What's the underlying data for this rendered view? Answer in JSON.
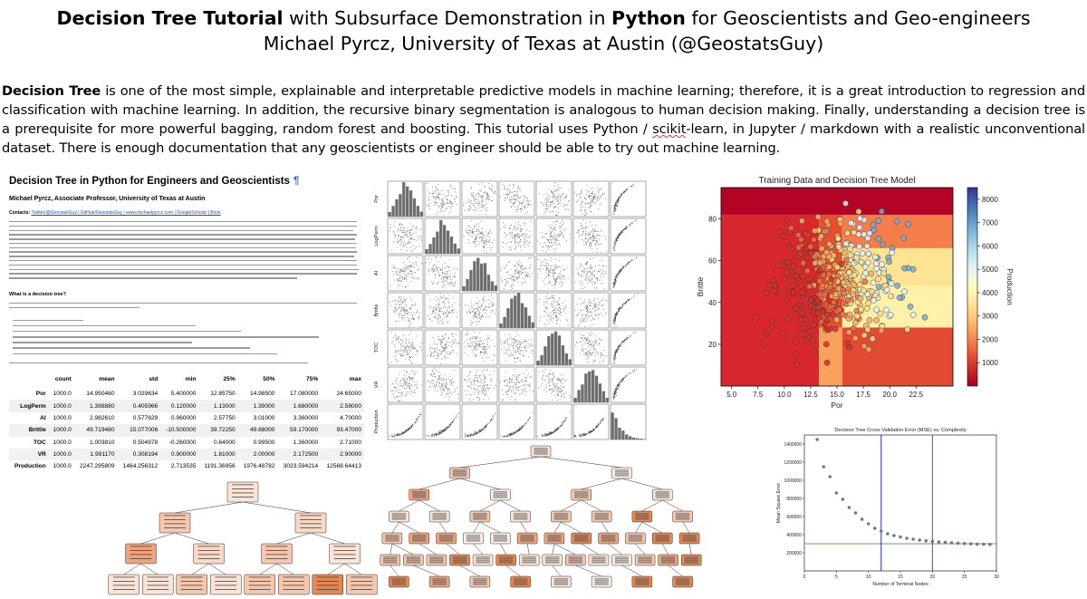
{
  "header": {
    "title_bold_1": "Decision Tree Tutorial",
    "title_mid": " with Subsurface Demonstration in ",
    "title_bold_2": "Python",
    "title_end": " for Geoscientists and Geo-engineers",
    "subtitle": "Michael Pyrcz, University of Texas at Austin (@GeostatsGuy)"
  },
  "intro": {
    "lead_bold": "Decision Tree",
    "text_1": " is one of the most simple, explainable and interpretable predictive models in machine learning; therefore, it is a great introduction to regression and classification with machine learning. In addition, the recursive binary segmentation is analogous to human decision making.  Finally, understanding a decision tree is a prerequisite for more powerful bagging, random forest and boosting.  This tutorial uses Python / ",
    "wavy_word": "scikit",
    "text_2": "-learn, in Jupyter / markdown with a realistic unconventional dataset.  There is enough documentation that any geoscientists or engineer should be able to try out machine learning."
  },
  "doc": {
    "title": "Decision Tree in Python for Engineers and Geoscientists",
    "pilcrow": "¶",
    "author": "Michael Pyrcz, Associate Professor, University of Texas at Austin",
    "contacts_label": "Contacts: ",
    "contacts_links": "Twitter/@GeostatsGuy | GitHub/GeostatsGuy | www.michaelpyrcz.com | GoogleScholar | Book",
    "question": "What is a decision tree?",
    "stats_table": {
      "columns": [
        "",
        "count",
        "mean",
        "std",
        "min",
        "25%",
        "50%",
        "75%",
        "max"
      ],
      "rows": [
        [
          "Por",
          "1000.0",
          "14.950460",
          "3.029634",
          "5.400000",
          "12.85750",
          "14.98500",
          "17.080000",
          "24.65000"
        ],
        [
          "LogPerm",
          "1000.0",
          "1.398880",
          "0.405966",
          "0.120000",
          "1.13000",
          "1.39000",
          "1.680000",
          "2.58000"
        ],
        [
          "AI",
          "1000.0",
          "2.982610",
          "0.577629",
          "0.960000",
          "2.57750",
          "3.01000",
          "3.360000",
          "4.70000"
        ],
        [
          "Brittle",
          "1000.0",
          "49.719480",
          "15.077006",
          "-10.500000",
          "39.72250",
          "49.68000",
          "59.170000",
          "93.47000"
        ],
        [
          "TOC",
          "1000.0",
          "1.003810",
          "0.504978",
          "-0.260000",
          "0.64000",
          "0.99500",
          "1.360000",
          "2.71000"
        ],
        [
          "VR",
          "1000.0",
          "1.991170",
          "0.308194",
          "0.900000",
          "1.81000",
          "2.00000",
          "2.172500",
          "2.90000"
        ],
        [
          "Production",
          "1000.0",
          "2247.295809",
          "1464.256312",
          "2.713535",
          "1191.36956",
          "1976.48782",
          "3023.594214",
          "12568.64413"
        ]
      ]
    }
  },
  "matrix": {
    "x_labels": [
      "Por",
      "LogPerm",
      "AI",
      "Brittle",
      "TOC",
      "VR",
      "Production"
    ],
    "y_labels": [
      "Por",
      "LogPerm",
      "AI",
      "Brittle",
      "TOC",
      "VR",
      "Production"
    ]
  },
  "heatmap": {
    "title": "Training Data and Decision Tree Model",
    "xlabel": "Por",
    "ylabel": "Brittle",
    "colorbar_label": "Production",
    "x_ticks": [
      "5.0",
      "7.5",
      "10.0",
      "12.5",
      "15.0",
      "17.5",
      "20.0",
      "22.5"
    ],
    "y_ticks": [
      "20",
      "40",
      "60",
      "80"
    ],
    "colorbar_ticks": [
      "1000",
      "2000",
      "3000",
      "4000",
      "5000",
      "6000",
      "7000",
      "8000"
    ]
  },
  "cv_chart": {
    "title": "Decision Tree Cross Validation Error (MSE) vs. Complexity",
    "xlabel": "Number of Terminal Nodes",
    "ylabel": "Mean Square Error",
    "y_ticks": [
      "200000",
      "400000",
      "600000",
      "800000",
      "1000000",
      "1200000",
      "1400000"
    ],
    "x_ticks": [
      "0",
      "5",
      "10",
      "15",
      "20",
      "25",
      "30"
    ]
  },
  "chart_data": [
    {
      "type": "scatter",
      "title": "Training Data and Decision Tree Model",
      "xlabel": "Por",
      "ylabel": "Brittle",
      "xlim": [
        4,
        26
      ],
      "ylim": [
        0,
        95
      ],
      "colorbar": "Production",
      "colorbar_range": [
        0,
        8500
      ],
      "regions": [
        {
          "x": [
            4,
            26
          ],
          "y": [
            82,
            95
          ],
          "color": "#b40426"
        },
        {
          "x": [
            4,
            13.3
          ],
          "y": [
            0,
            82
          ],
          "color": "#d8282d"
        },
        {
          "x": [
            13.3,
            15.5
          ],
          "y": [
            0,
            28
          ],
          "color": "#f7a15c"
        },
        {
          "x": [
            13.3,
            15.5
          ],
          "y": [
            28,
            82
          ],
          "color": "#e4502e"
        },
        {
          "x": [
            15.5,
            26
          ],
          "y": [
            28,
            48
          ],
          "color": "#fff1a8"
        },
        {
          "x": [
            15.5,
            26
          ],
          "y": [
            48,
            66
          ],
          "color": "#fde492"
        },
        {
          "x": [
            15.5,
            26
          ],
          "y": [
            66,
            82
          ],
          "color": "#f47d4a"
        },
        {
          "x": [
            15.5,
            26
          ],
          "y": [
            0,
            28
          ],
          "color": "#e34a33"
        }
      ]
    },
    {
      "type": "scatter",
      "title": "Decision Tree Cross Validation Error (MSE) vs. Complexity",
      "xlabel": "Number of Terminal Nodes",
      "ylabel": "Mean Square Error",
      "xlim": [
        0,
        30
      ],
      "ylim": [
        0,
        1500000
      ],
      "x": [
        2,
        3,
        4,
        5,
        6,
        7,
        8,
        9,
        10,
        11,
        12,
        13,
        14,
        15,
        16,
        17,
        18,
        19,
        20,
        21,
        22,
        23,
        24,
        25,
        26,
        27,
        28,
        29
      ],
      "values": [
        1450000,
        1150000,
        1040000,
        860000,
        790000,
        700000,
        640000,
        570000,
        520000,
        470000,
        440000,
        410000,
        390000,
        375000,
        360000,
        350000,
        340000,
        332000,
        326000,
        320000,
        315000,
        310000,
        306000,
        302000,
        299000,
        296000,
        294000,
        292000
      ],
      "vlines": [
        {
          "x": 12,
          "color": "#1f2aa8"
        },
        {
          "x": 20,
          "color": "#e02020"
        }
      ],
      "hline": {
        "y": 300000,
        "color": "#2f8a2f"
      }
    }
  ]
}
